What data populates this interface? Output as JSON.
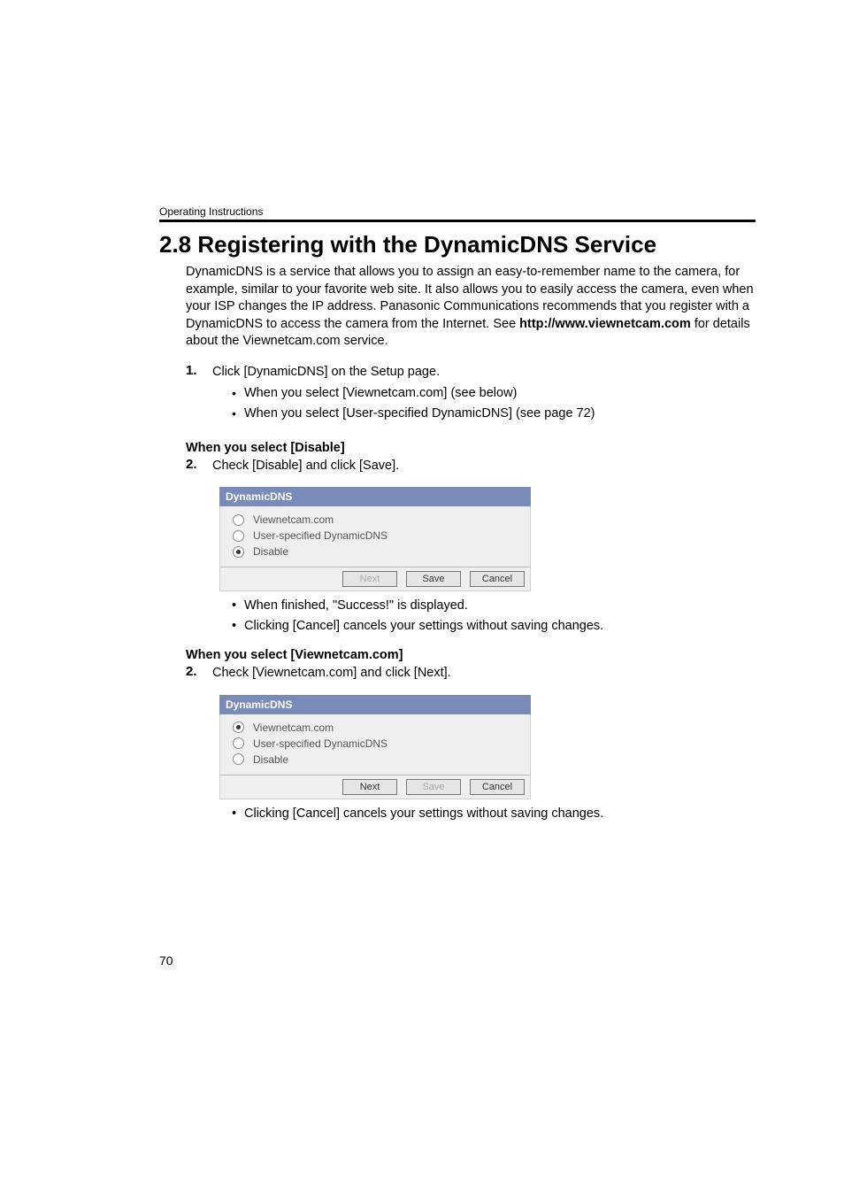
{
  "header": {
    "running": "Operating Instructions"
  },
  "title": "2.8    Registering with the DynamicDNS Service",
  "intro": {
    "pre": "DynamicDNS is a service that allows you to assign an easy-to-remember name to the camera, for example, similar to your favorite web site. It also allows you to easily access the camera, even when your ISP changes the IP address. Panasonic Communications recommends that you register with a DynamicDNS to access the camera from the Internet. See ",
    "bold": "http://www.viewnetcam.com",
    "post": " for details about the Viewnetcam.com service."
  },
  "step1": {
    "num": "1.",
    "text": "Click [DynamicDNS] on the Setup page.",
    "bullets": [
      "When you select [Viewnetcam.com] (see below)",
      "When you select [User-specified DynamicDNS] (see page 72)"
    ]
  },
  "disable": {
    "head": "When you select [Disable]",
    "num": "2.",
    "text": "Check [Disable] and click [Save].",
    "dialog": {
      "title": "DynamicDNS",
      "options": [
        {
          "label": "Viewnetcam.com",
          "selected": false
        },
        {
          "label": "User-specified DynamicDNS",
          "selected": false
        },
        {
          "label": "Disable",
          "selected": true
        }
      ],
      "buttons": {
        "next": {
          "label": "Next",
          "enabled": false
        },
        "save": {
          "label": "Save",
          "enabled": true
        },
        "cancel": {
          "label": "Cancel",
          "enabled": true
        }
      }
    },
    "after": [
      "When finished, \"Success!\" is displayed.",
      "Clicking [Cancel] cancels your settings without saving changes."
    ]
  },
  "viewnet": {
    "head": "When you select [Viewnetcam.com]",
    "num": "2.",
    "text": "Check [Viewnetcam.com] and click [Next].",
    "dialog": {
      "title": "DynamicDNS",
      "options": [
        {
          "label": "Viewnetcam.com",
          "selected": true
        },
        {
          "label": "User-specified DynamicDNS",
          "selected": false
        },
        {
          "label": "Disable",
          "selected": false
        }
      ],
      "buttons": {
        "next": {
          "label": "Next",
          "enabled": true
        },
        "save": {
          "label": "Save",
          "enabled": false
        },
        "cancel": {
          "label": "Cancel",
          "enabled": true
        }
      }
    },
    "after": [
      "Clicking [Cancel] cancels your settings without saving changes."
    ]
  },
  "page_number": "70",
  "colors": {
    "title_bar": "#7b8bb9",
    "panel_bg": "#efefef",
    "btn_bg": "#e5e5e5"
  }
}
